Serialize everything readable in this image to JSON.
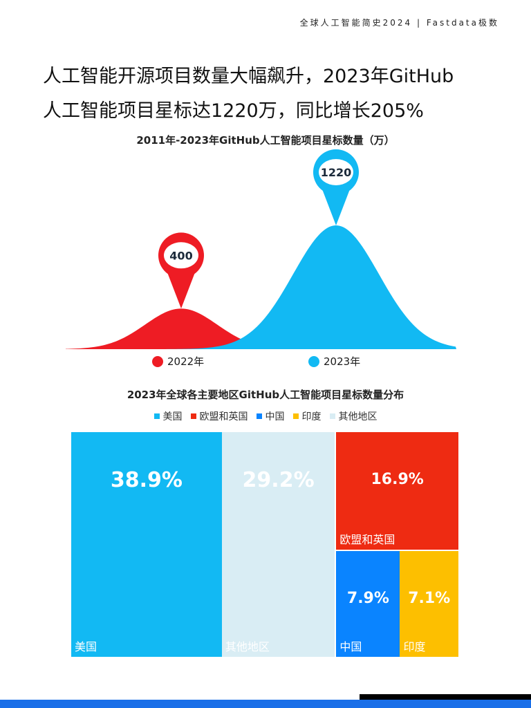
{
  "header": {
    "source": "全球人工智能简史2024 | Fastdata极数"
  },
  "headline": {
    "line1": "人工智能开源项目数量大幅飙升，2023年GitHub",
    "line2": "人工智能项目星标达1220万，同比增长205%"
  },
  "colors": {
    "red": "#ee1c24",
    "cyan": "#12b9f3",
    "us": "#12b9f3",
    "eu_uk": "#ee2b12",
    "china": "#0a84ff",
    "india": "#fdbf00",
    "others": "#d9edf4"
  },
  "chart_data": [
    {
      "type": "area",
      "title": "2011年-2023年GitHub人工智能项目星标数量（万）",
      "series": [
        {
          "name": "2022年",
          "value": 400,
          "color": "#ee1c24"
        },
        {
          "name": "2023年",
          "value": 1220,
          "color": "#12b9f3"
        }
      ],
      "legend_position": "bottom",
      "grid": false
    },
    {
      "type": "treemap",
      "title": "2023年全球各主要地区GitHub人工智能项目星标数量分布",
      "categories": [
        "美国",
        "欧盟和英国",
        "中国",
        "印度",
        "其他地区"
      ],
      "values": [
        38.9,
        16.9,
        7.9,
        7.1,
        29.2
      ],
      "value_labels": [
        "38.9%",
        "16.9%",
        "7.9%",
        "7.1%",
        "29.2%"
      ],
      "legend_position": "top"
    }
  ]
}
